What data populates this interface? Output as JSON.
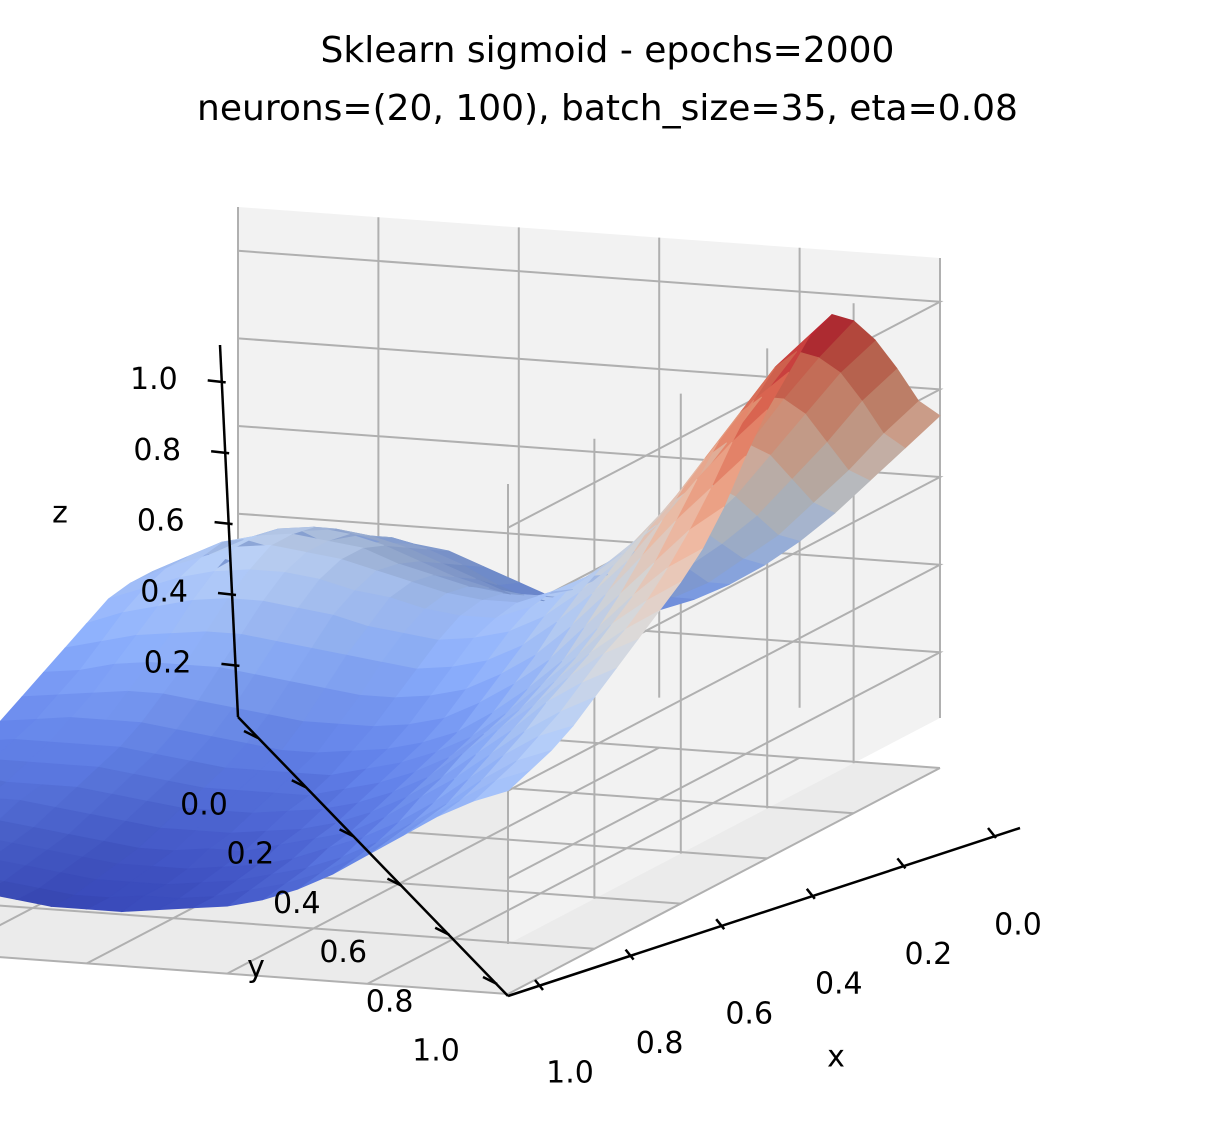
{
  "chart_data": {
    "type": "surface",
    "title": "Sklearn sigmoid - epochs=2000",
    "subtitle": "neurons=(20, 100), batch_size=35, eta=0.08",
    "xlabel": "x",
    "ylabel": "y",
    "zlabel": "z",
    "colormap": "coolwarm",
    "xlim": [
      0,
      1
    ],
    "ylim": [
      0,
      1
    ],
    "zlim": [
      0.05,
      1.1
    ],
    "grid": true,
    "x_ticks": [
      0.0,
      0.2,
      0.4,
      0.6,
      0.8,
      1.0
    ],
    "y_ticks": [
      0.0,
      0.2,
      0.4,
      0.6,
      0.8,
      1.0
    ],
    "z_ticks": [
      0.2,
      0.4,
      0.6,
      0.8,
      1.0
    ],
    "x_tick_labels": [
      "0.0",
      "0.2",
      "0.4",
      "0.6",
      "0.8",
      "1.0"
    ],
    "y_tick_labels": [
      "0.0",
      "0.2",
      "0.4",
      "0.6",
      "0.8",
      "1.0"
    ],
    "z_tick_labels": [
      "0.2",
      "0.4",
      "0.6",
      "0.8",
      "1.0"
    ],
    "view": {
      "elev": 30,
      "azim": 60
    },
    "grid_x": [
      0.0,
      0.05,
      0.1,
      0.15,
      0.2,
      0.25,
      0.3,
      0.35,
      0.4,
      0.45,
      0.5,
      0.55,
      0.6,
      0.65,
      0.7,
      0.75,
      0.8,
      0.85,
      0.9,
      0.95,
      1.0
    ],
    "grid_y": [
      0.0,
      0.05,
      0.1,
      0.15,
      0.2,
      0.25,
      0.3,
      0.35,
      0.4,
      0.45,
      0.5,
      0.55,
      0.6,
      0.65,
      0.7,
      0.75,
      0.8,
      0.85,
      0.9,
      0.95,
      1.0
    ],
    "z_values": [
      [
        0.74,
        0.8,
        0.9,
        0.99,
        1.06,
        1.1,
        1.08,
        1.02,
        0.96,
        0.88,
        0.79,
        0.72,
        0.67,
        0.63,
        0.59,
        0.55,
        0.51,
        0.47,
        0.44,
        0.42,
        0.4
      ],
      [
        0.66,
        0.72,
        0.82,
        0.91,
        0.97,
        1.01,
        1.0,
        0.95,
        0.88,
        0.8,
        0.73,
        0.67,
        0.62,
        0.58,
        0.55,
        0.51,
        0.47,
        0.44,
        0.41,
        0.39,
        0.37
      ],
      [
        0.58,
        0.63,
        0.72,
        0.81,
        0.87,
        0.9,
        0.89,
        0.85,
        0.79,
        0.72,
        0.65,
        0.6,
        0.56,
        0.52,
        0.49,
        0.46,
        0.42,
        0.39,
        0.36,
        0.34,
        0.33
      ],
      [
        0.5,
        0.55,
        0.63,
        0.71,
        0.76,
        0.79,
        0.78,
        0.74,
        0.69,
        0.63,
        0.57,
        0.52,
        0.48,
        0.45,
        0.42,
        0.39,
        0.36,
        0.33,
        0.3,
        0.29,
        0.28
      ],
      [
        0.43,
        0.47,
        0.54,
        0.61,
        0.66,
        0.68,
        0.67,
        0.64,
        0.59,
        0.54,
        0.49,
        0.44,
        0.41,
        0.38,
        0.36,
        0.33,
        0.3,
        0.27,
        0.25,
        0.24,
        0.23
      ],
      [
        0.37,
        0.41,
        0.47,
        0.53,
        0.57,
        0.59,
        0.58,
        0.55,
        0.51,
        0.46,
        0.41,
        0.37,
        0.34,
        0.32,
        0.3,
        0.27,
        0.25,
        0.22,
        0.2,
        0.19,
        0.18
      ],
      [
        0.32,
        0.35,
        0.41,
        0.46,
        0.5,
        0.52,
        0.51,
        0.48,
        0.44,
        0.39,
        0.35,
        0.31,
        0.28,
        0.26,
        0.24,
        0.22,
        0.2,
        0.18,
        0.16,
        0.15,
        0.14
      ],
      [
        0.28,
        0.31,
        0.36,
        0.41,
        0.44,
        0.46,
        0.45,
        0.42,
        0.38,
        0.34,
        0.3,
        0.26,
        0.24,
        0.22,
        0.2,
        0.18,
        0.16,
        0.15,
        0.13,
        0.12,
        0.11
      ],
      [
        0.25,
        0.28,
        0.33,
        0.37,
        0.4,
        0.42,
        0.41,
        0.38,
        0.34,
        0.3,
        0.26,
        0.23,
        0.21,
        0.19,
        0.17,
        0.15,
        0.14,
        0.12,
        0.11,
        0.1,
        0.09
      ],
      [
        0.24,
        0.27,
        0.31,
        0.35,
        0.38,
        0.39,
        0.38,
        0.36,
        0.32,
        0.28,
        0.24,
        0.21,
        0.19,
        0.17,
        0.15,
        0.13,
        0.12,
        0.1,
        0.09,
        0.08,
        0.08
      ],
      [
        0.24,
        0.27,
        0.31,
        0.35,
        0.38,
        0.39,
        0.38,
        0.35,
        0.31,
        0.27,
        0.23,
        0.2,
        0.17,
        0.15,
        0.14,
        0.12,
        0.1,
        0.09,
        0.08,
        0.07,
        0.07
      ],
      [
        0.26,
        0.28,
        0.32,
        0.36,
        0.39,
        0.4,
        0.39,
        0.36,
        0.32,
        0.27,
        0.23,
        0.19,
        0.17,
        0.15,
        0.13,
        0.11,
        0.1,
        0.08,
        0.07,
        0.07,
        0.06
      ],
      [
        0.29,
        0.31,
        0.35,
        0.38,
        0.41,
        0.42,
        0.41,
        0.37,
        0.33,
        0.28,
        0.23,
        0.19,
        0.17,
        0.15,
        0.13,
        0.11,
        0.09,
        0.08,
        0.07,
        0.06,
        0.06
      ],
      [
        0.32,
        0.35,
        0.38,
        0.41,
        0.43,
        0.44,
        0.42,
        0.39,
        0.34,
        0.29,
        0.24,
        0.2,
        0.17,
        0.15,
        0.13,
        0.11,
        0.09,
        0.08,
        0.07,
        0.06,
        0.06
      ],
      [
        0.35,
        0.38,
        0.41,
        0.44,
        0.46,
        0.46,
        0.44,
        0.4,
        0.35,
        0.3,
        0.25,
        0.21,
        0.18,
        0.16,
        0.14,
        0.12,
        0.1,
        0.09,
        0.08,
        0.07,
        0.07
      ],
      [
        0.36,
        0.4,
        0.43,
        0.46,
        0.47,
        0.47,
        0.45,
        0.41,
        0.36,
        0.31,
        0.26,
        0.22,
        0.19,
        0.17,
        0.15,
        0.13,
        0.11,
        0.1,
        0.09,
        0.08,
        0.08
      ],
      [
        0.36,
        0.4,
        0.44,
        0.47,
        0.48,
        0.48,
        0.45,
        0.41,
        0.36,
        0.31,
        0.27,
        0.23,
        0.2,
        0.18,
        0.16,
        0.14,
        0.12,
        0.11,
        0.1,
        0.09,
        0.09
      ],
      [
        0.33,
        0.38,
        0.43,
        0.46,
        0.47,
        0.47,
        0.44,
        0.4,
        0.35,
        0.31,
        0.27,
        0.23,
        0.2,
        0.18,
        0.16,
        0.15,
        0.13,
        0.12,
        0.11,
        0.1,
        0.1
      ],
      [
        0.29,
        0.34,
        0.39,
        0.43,
        0.45,
        0.44,
        0.42,
        0.38,
        0.34,
        0.3,
        0.26,
        0.23,
        0.2,
        0.18,
        0.16,
        0.15,
        0.14,
        0.13,
        0.12,
        0.11,
        0.11
      ],
      [
        0.24,
        0.29,
        0.35,
        0.39,
        0.41,
        0.41,
        0.39,
        0.36,
        0.32,
        0.28,
        0.25,
        0.22,
        0.2,
        0.18,
        0.17,
        0.16,
        0.14,
        0.13,
        0.12,
        0.12,
        0.12
      ],
      [
        0.19,
        0.24,
        0.3,
        0.35,
        0.37,
        0.37,
        0.36,
        0.33,
        0.3,
        0.27,
        0.24,
        0.21,
        0.19,
        0.18,
        0.17,
        0.16,
        0.15,
        0.14,
        0.13,
        0.12,
        0.12
      ]
    ]
  }
}
